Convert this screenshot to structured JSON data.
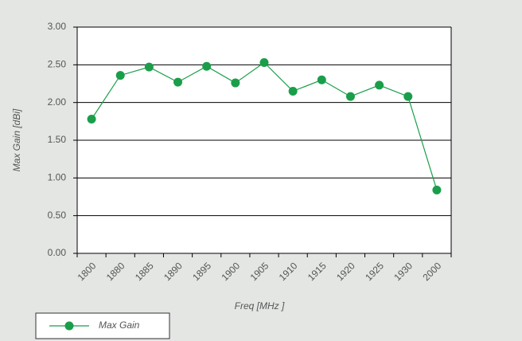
{
  "chart_data": {
    "type": "line",
    "categories": [
      "1800",
      "1880",
      "1885",
      "1890",
      "1895",
      "1900",
      "1905",
      "1910",
      "1915",
      "1920",
      "1925",
      "1930",
      "2000"
    ],
    "series": [
      {
        "name": "Max Gain",
        "color": "#1a9e4a",
        "values": [
          1.78,
          2.36,
          2.47,
          2.27,
          2.48,
          2.26,
          2.53,
          2.15,
          2.3,
          2.08,
          2.23,
          2.08,
          0.84
        ]
      }
    ],
    "ylim": [
      0,
      3
    ],
    "yticks": [
      {
        "value": 0,
        "label": "0.00"
      },
      {
        "value": 0.5,
        "label": "0.50"
      },
      {
        "value": 1,
        "label": "1.00"
      },
      {
        "value": 1.5,
        "label": "1.50"
      },
      {
        "value": 2,
        "label": "2.00"
      },
      {
        "value": 2.5,
        "label": "2.50"
      },
      {
        "value": 3,
        "label": "3.00"
      }
    ],
    "x_label": "Freq [MHz ]",
    "y_label": "Max Gain [dBi]",
    "grid": true,
    "legend": "bottom-left"
  }
}
